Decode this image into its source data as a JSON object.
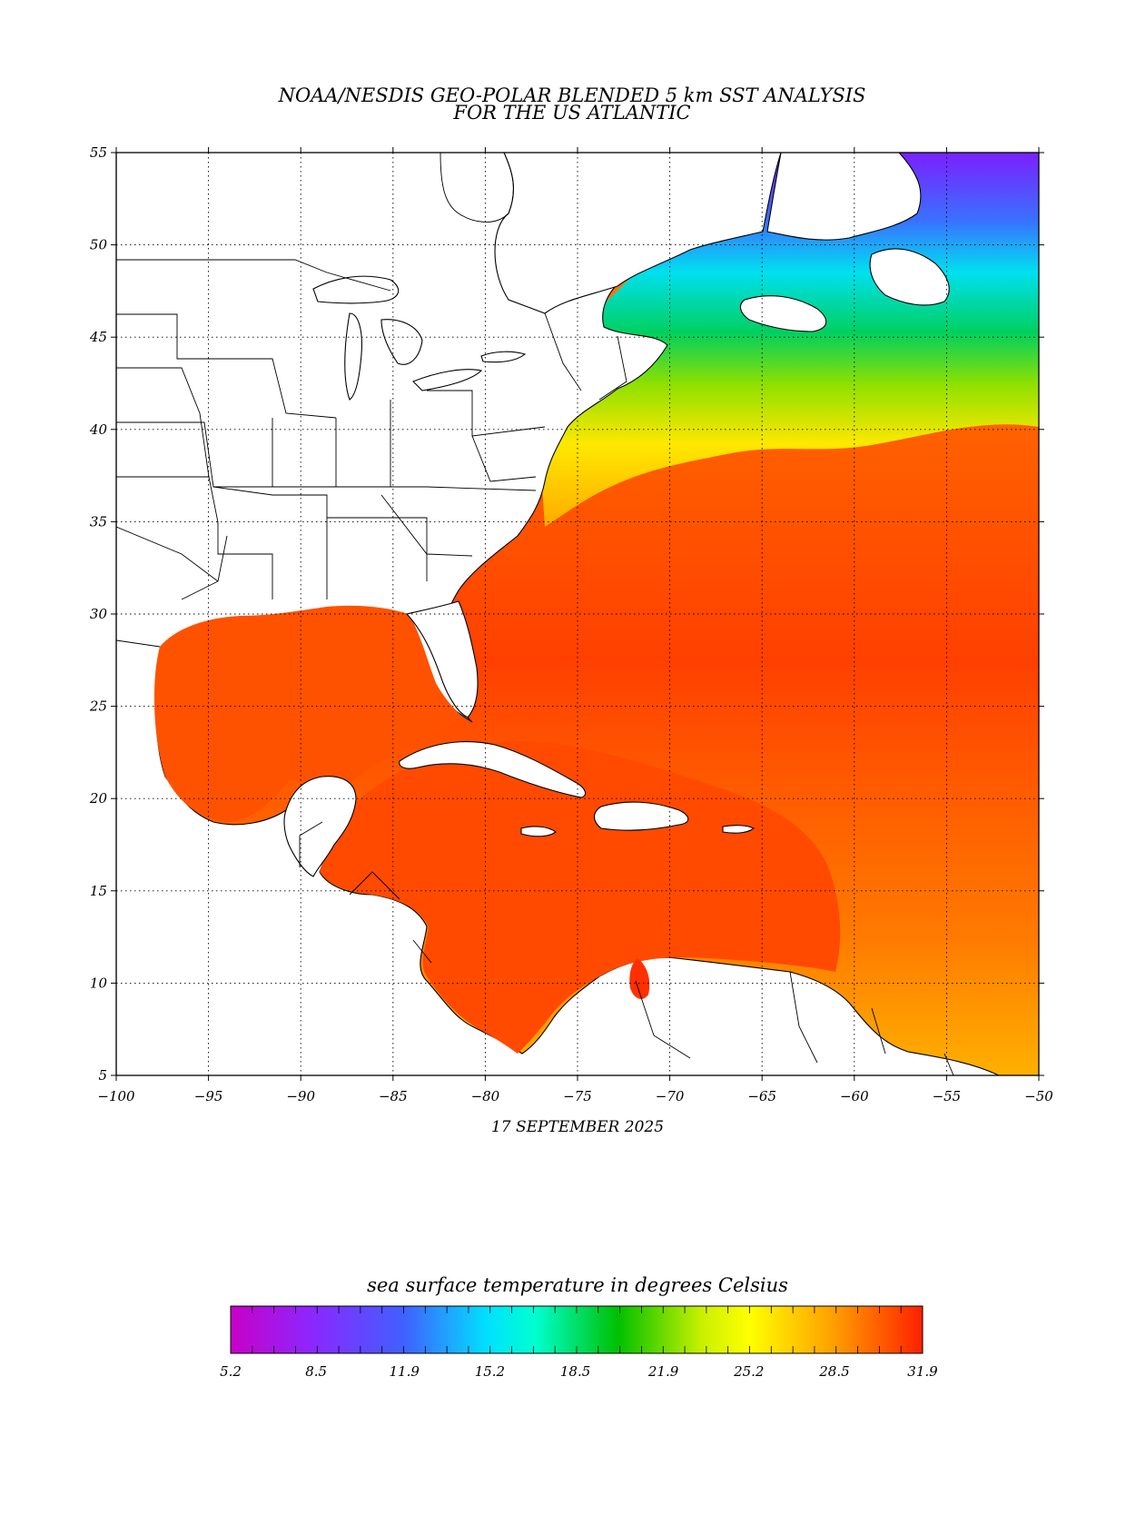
{
  "title_line1": "NOAA/NESDIS GEO-POLAR BLENDED 5 km SST ANALYSIS",
  "title_line2": "FOR THE US ATLANTIC",
  "date": "17 SEPTEMBER 2025",
  "colorbar_title": "sea surface temperature in degrees Celsius",
  "map": {
    "lon_range": [
      -100,
      -50
    ],
    "lat_range": [
      5,
      55
    ],
    "x_ticks": [
      "-100",
      "-95",
      "-90",
      "-85",
      "-80",
      "-75",
      "-70",
      "-65",
      "-60",
      "-55",
      "-50"
    ],
    "y_ticks": [
      "5",
      "10",
      "15",
      "20",
      "25",
      "30",
      "35",
      "40",
      "45",
      "50",
      "55"
    ],
    "grid": true
  },
  "colorbar": {
    "min": 5.2,
    "max": 31.9,
    "tick_labels": [
      "5.2",
      "8.5",
      "11.9",
      "15.2",
      "18.5",
      "21.9",
      "25.2",
      "28.5",
      "31.9"
    ],
    "colors": [
      "#c800c8",
      "#8a28ff",
      "#4060ff",
      "#00c8ff",
      "#00ffd0",
      "#00cc00",
      "#c8ee00",
      "#ffff00",
      "#ffa000",
      "#ff2000"
    ]
  }
}
